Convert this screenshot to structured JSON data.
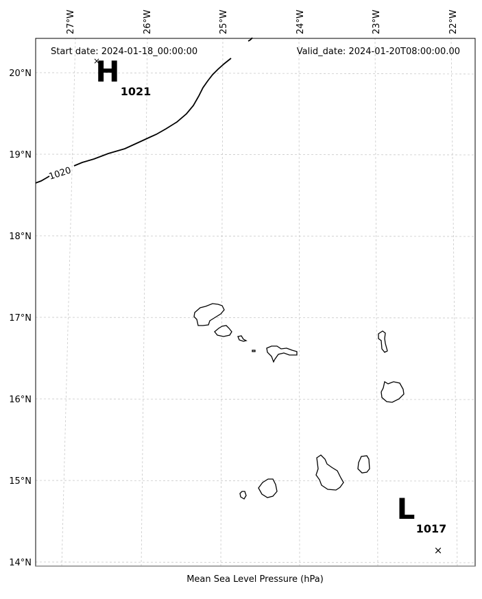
{
  "map": {
    "header": {
      "start_date": "Start date: 2024-01-18_00:00:00",
      "valid_date": "Valid_date: 2024-01-20T08:00:00.00"
    },
    "caption": "Mean Sea Level Pressure (hPa)",
    "lon_ticks": [
      "27°W",
      "26°W",
      "25°W",
      "24°W",
      "23°W",
      "22°W"
    ],
    "lat_ticks": [
      "20°N",
      "19°N",
      "18°N",
      "17°N",
      "16°N",
      "15°N",
      "14°N"
    ],
    "pressure_centers": [
      {
        "letter": "H",
        "value": "1021"
      },
      {
        "letter": "L",
        "value": "1017"
      }
    ],
    "isobars": [
      {
        "level": "1020"
      }
    ],
    "colors": {
      "isobar": "#000000",
      "coastline": "#000000",
      "gridline": "#c8c8c8",
      "frame": "#000000"
    }
  }
}
